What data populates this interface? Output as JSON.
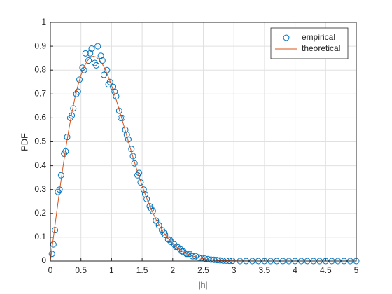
{
  "chart_data": {
    "type": "scatter",
    "x_label": "|h|",
    "y_label": "PDF",
    "xlim": [
      0,
      5
    ],
    "ylim": [
      0,
      1
    ],
    "xticks": [
      0,
      0.5,
      1,
      1.5,
      2,
      2.5,
      3,
      3.5,
      4,
      4.5,
      5
    ],
    "yticks": [
      0,
      0.1,
      0.2,
      0.3,
      0.4,
      0.5,
      0.6,
      0.7,
      0.8,
      0.9,
      1
    ],
    "grid": true,
    "legend": "northeast",
    "series": [
      {
        "name": "empirical",
        "type": "scatter",
        "color": "#0072bd",
        "x": [
          0.025,
          0.075,
          0.125,
          0.175,
          0.225,
          0.275,
          0.325,
          0.375,
          0.425,
          0.475,
          0.525,
          0.575,
          0.625,
          0.675,
          0.725,
          0.775,
          0.825,
          0.875,
          0.925,
          0.975,
          1.025,
          1.075,
          1.125,
          1.175,
          1.225,
          1.275,
          1.325,
          1.375,
          1.425,
          1.475,
          1.525,
          1.575,
          1.625,
          1.675,
          1.725,
          1.775,
          1.825,
          1.875,
          1.925,
          1.975,
          2.025,
          2.075,
          2.125,
          2.175,
          2.225,
          2.275,
          2.325,
          2.375,
          2.425,
          2.475,
          2.525,
          2.575,
          2.625,
          2.675,
          2.725,
          2.775,
          2.825,
          2.875,
          2.925,
          2.975,
          3.1,
          3.2,
          3.3,
          3.4,
          3.5,
          3.6,
          3.7,
          3.8,
          3.9,
          4.0,
          4.1,
          4.2,
          4.3,
          4.4,
          4.5,
          4.6,
          4.7,
          4.8,
          4.9,
          5.0,
          0.05,
          0.15,
          0.25,
          0.35,
          0.45,
          0.55,
          0.65,
          0.75,
          0.85,
          0.95,
          1.05,
          1.15,
          1.25,
          1.35,
          1.45,
          1.55,
          1.65,
          1.75,
          1.85,
          1.95,
          2.05,
          2.15,
          2.25
        ],
        "values": [
          0.03,
          0.13,
          0.29,
          0.36,
          0.45,
          0.52,
          0.6,
          0.64,
          0.7,
          0.76,
          0.81,
          0.87,
          0.84,
          0.89,
          0.83,
          0.9,
          0.86,
          0.78,
          0.8,
          0.75,
          0.73,
          0.69,
          0.63,
          0.6,
          0.55,
          0.51,
          0.47,
          0.41,
          0.36,
          0.33,
          0.3,
          0.26,
          0.23,
          0.21,
          0.17,
          0.15,
          0.13,
          0.11,
          0.09,
          0.08,
          0.07,
          0.06,
          0.05,
          0.04,
          0.03,
          0.03,
          0.02,
          0.02,
          0.015,
          0.012,
          0.01,
          0.008,
          0.006,
          0.005,
          0.004,
          0.003,
          0.002,
          0.002,
          0.001,
          0.001,
          0,
          0,
          0,
          0,
          0,
          0,
          0,
          0,
          0,
          0,
          0,
          0,
          0,
          0,
          0,
          0,
          0,
          0,
          0,
          0,
          0.07,
          0.3,
          0.46,
          0.61,
          0.71,
          0.8,
          0.87,
          0.82,
          0.84,
          0.74,
          0.71,
          0.6,
          0.53,
          0.44,
          0.37,
          0.28,
          0.22,
          0.16,
          0.12,
          0.09,
          0.06,
          0.04,
          0.03
        ]
      },
      {
        "name": "theoretical",
        "type": "line",
        "color": "#d95319",
        "x": [
          0,
          0.05,
          0.1,
          0.15,
          0.2,
          0.25,
          0.3,
          0.35,
          0.4,
          0.45,
          0.5,
          0.55,
          0.6,
          0.65,
          0.7,
          0.75,
          0.8,
          0.85,
          0.9,
          0.95,
          1.0,
          1.05,
          1.1,
          1.15,
          1.2,
          1.25,
          1.3,
          1.35,
          1.4,
          1.45,
          1.5,
          1.55,
          1.6,
          1.65,
          1.7,
          1.75,
          1.8,
          1.85,
          1.9,
          1.95,
          2.0,
          2.1,
          2.2,
          2.3,
          2.4,
          2.5,
          2.6,
          2.7,
          2.8,
          2.9,
          3.0,
          3.5,
          4.0,
          4.5,
          5.0
        ],
        "values": [
          0,
          0.0998,
          0.198,
          0.2933,
          0.3843,
          0.4697,
          0.5484,
          0.6193,
          0.6817,
          0.735,
          0.7788,
          0.8129,
          0.8372,
          0.852,
          0.8577,
          0.8547,
          0.8437,
          0.8254,
          0.8007,
          0.7705,
          0.7358,
          0.6974,
          0.6561,
          0.6129,
          0.5686,
          0.524,
          0.4798,
          0.4364,
          0.3944,
          0.3542,
          0.3162,
          0.2806,
          0.2474,
          0.2168,
          0.189,
          0.1637,
          0.141,
          0.1207,
          0.1028,
          0.087,
          0.0733,
          0.0511,
          0.0348,
          0.0232,
          0.0151,
          0.0097,
          0.006,
          0.0037,
          0.0022,
          0.0013,
          0.0007,
          0,
          0,
          0,
          0
        ]
      }
    ]
  }
}
